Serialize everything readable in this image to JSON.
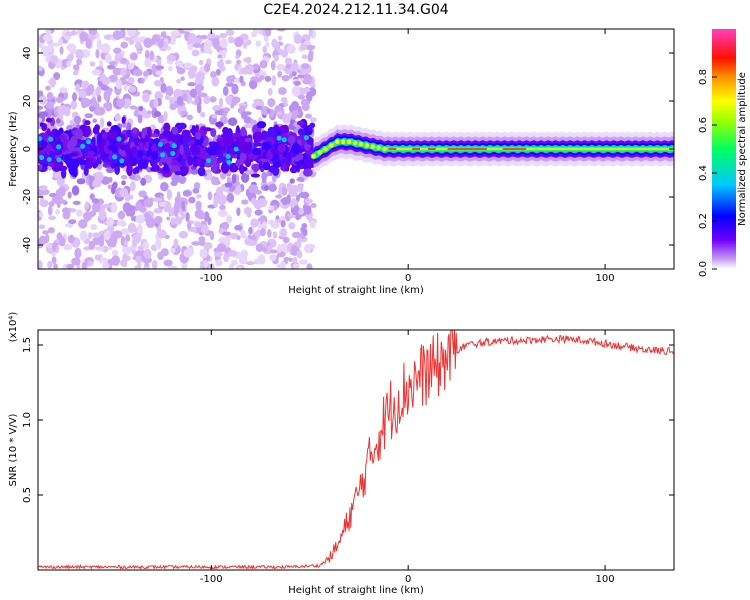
{
  "figure": {
    "title": "C2E4.2024.212.11.34.G04"
  },
  "chart_data": [
    {
      "type": "heatmap",
      "title": "C2E4.2024.212.11.34.G04",
      "xlabel": "Height of straight line (km)",
      "ylabel": "Frequency (Hz)",
      "xlim": [
        -188,
        135
      ],
      "ylim": [
        -50,
        50
      ],
      "x_ticks": [
        -100,
        0,
        100
      ],
      "y_ticks": [
        -40,
        -20,
        0,
        20,
        40
      ],
      "colorbar": {
        "label": "Normalized spectral amplitude",
        "range": [
          0,
          1
        ],
        "ticks": [
          "0.0",
          "0.2",
          "0.4",
          "0.6",
          "0.8"
        ],
        "colormap": [
          "#9400d3",
          "#4b00ff",
          "#0000ff",
          "#00ffff",
          "#00ff00",
          "#ffff00",
          "#ff7f00",
          "#ff0000",
          "#ff00c8"
        ]
      },
      "signal_center_hz": [
        {
          "x": -48,
          "y": -3
        },
        {
          "x": -42,
          "y": 0
        },
        {
          "x": -36,
          "y": 3
        },
        {
          "x": -30,
          "y": 3
        },
        {
          "x": -24,
          "y": 2
        },
        {
          "x": -18,
          "y": 1
        },
        {
          "x": -12,
          "y": 0
        },
        {
          "x": -6,
          "y": 0
        },
        {
          "x": 0,
          "y": 0
        },
        {
          "x": 6,
          "y": 0
        },
        {
          "x": 12,
          "y": 0
        },
        {
          "x": 40,
          "y": 0
        },
        {
          "x": 80,
          "y": 0
        },
        {
          "x": 135,
          "y": 0
        }
      ]
    },
    {
      "type": "line",
      "xlabel": "Height of straight line (km)",
      "ylabel": "SNR (10 * V/V)",
      "y_multiplier": "(x10⁴)",
      "xlim": [
        -188,
        135
      ],
      "ylim": [
        0,
        1.6
      ],
      "x_ticks": [
        -100,
        0,
        100
      ],
      "y_ticks": [
        "0.5",
        "1.0",
        "1.5"
      ],
      "series": [
        {
          "color": "#ee3333",
          "x": [
            -188,
            -150,
            -100,
            -60,
            -45,
            -40,
            -35,
            -30,
            -25,
            -20,
            -15,
            -10,
            -5,
            0,
            5,
            10,
            15,
            20,
            25,
            30,
            40,
            50,
            60,
            70,
            80,
            90,
            100,
            110,
            120,
            130,
            135
          ],
          "y": [
            0.02,
            0.02,
            0.02,
            0.02,
            0.03,
            0.08,
            0.18,
            0.35,
            0.52,
            0.72,
            0.9,
            1.05,
            1.15,
            1.22,
            1.28,
            1.32,
            1.36,
            1.42,
            1.47,
            1.5,
            1.52,
            1.53,
            1.53,
            1.54,
            1.54,
            1.53,
            1.51,
            1.49,
            1.47,
            1.46,
            1.46
          ]
        }
      ]
    }
  ]
}
